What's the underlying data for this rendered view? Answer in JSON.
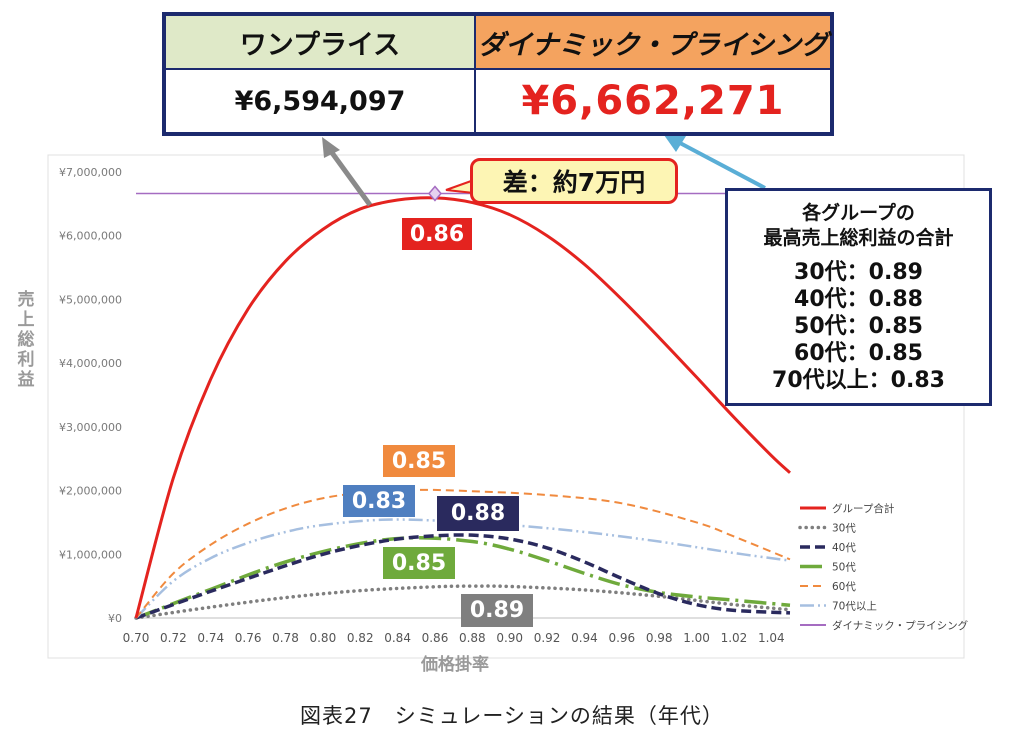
{
  "table": {
    "header_one_price": "ワンプライス",
    "header_dynamic": "ダイナミック・プライシング",
    "value_one_price": "¥6,594,097",
    "value_dynamic": "¥6,662,271"
  },
  "diff_callout": "差：約7万円",
  "summary_box": {
    "title_line1": "各グループの",
    "title_line2": "最高売上総利益の合計",
    "rows": [
      "30代：0.89",
      "40代：0.88",
      "50代：0.85",
      "60代：0.85",
      "70代以上：0.83"
    ]
  },
  "caption": "図表27　シミュレーションの結果（年代）",
  "colors": {
    "group_total": "#e4231f",
    "age30": "#7f7f7f",
    "age40": "#2a2a5e",
    "age50": "#6faa3c",
    "age60": "#f08a3e",
    "age70": "#a6bfe0",
    "dynamic": "#a56cc1",
    "navy": "#1c2a6e"
  },
  "chart_data": {
    "type": "line",
    "xlabel": "価格掛率",
    "ylabel": "売上総利益",
    "xlim": [
      0.7,
      1.05
    ],
    "ylim": [
      0,
      7000000
    ],
    "x_ticks": [
      "0.70",
      "0.72",
      "0.74",
      "0.76",
      "0.78",
      "0.80",
      "0.82",
      "0.84",
      "0.86",
      "0.88",
      "0.90",
      "0.92",
      "0.94",
      "0.96",
      "0.98",
      "1.00",
      "1.02",
      "1.04"
    ],
    "y_ticks": [
      "¥0",
      "¥1,000,000",
      "¥2,000,000",
      "¥3,000,000",
      "¥4,000,000",
      "¥5,000,000",
      "¥6,000,000",
      "¥7,000,000"
    ],
    "legend_position": "right",
    "series": [
      {
        "name": "グループ合計",
        "style": "solid",
        "x": [
          0.7,
          0.72,
          0.74,
          0.76,
          0.78,
          0.8,
          0.82,
          0.84,
          0.86,
          0.88,
          0.9,
          0.92,
          0.94,
          0.96,
          0.98,
          1.0,
          1.02,
          1.04,
          1.05
        ],
        "y": [
          0,
          2200000,
          3750000,
          4850000,
          5600000,
          6100000,
          6420000,
          6560000,
          6594000,
          6520000,
          6330000,
          6000000,
          5550000,
          5000000,
          4400000,
          3780000,
          3150000,
          2550000,
          2280000
        ]
      },
      {
        "name": "30代",
        "style": "dotted",
        "x": [
          0.7,
          0.74,
          0.78,
          0.82,
          0.86,
          0.88,
          0.9,
          0.94,
          0.98,
          1.02,
          1.05
        ],
        "y": [
          0,
          170000,
          320000,
          430000,
          490000,
          500000,
          495000,
          440000,
          340000,
          210000,
          130000
        ]
      },
      {
        "name": "40代",
        "style": "dashed",
        "x": [
          0.7,
          0.74,
          0.78,
          0.8,
          0.82,
          0.84,
          0.86,
          0.88,
          0.9,
          0.92,
          0.94,
          0.96,
          0.98,
          1.0,
          1.02,
          1.05
        ],
        "y": [
          0,
          420000,
          820000,
          1000000,
          1140000,
          1240000,
          1290000,
          1300000,
          1240000,
          1100000,
          880000,
          620000,
          380000,
          210000,
          120000,
          80000
        ]
      },
      {
        "name": "50代",
        "style": "dashdot",
        "x": [
          0.7,
          0.74,
          0.78,
          0.82,
          0.85,
          0.88,
          0.9,
          0.92,
          0.94,
          0.96,
          0.98,
          1.0,
          1.02,
          1.05
        ],
        "y": [
          0,
          450000,
          880000,
          1170000,
          1260000,
          1200000,
          1080000,
          900000,
          700000,
          520000,
          400000,
          330000,
          280000,
          200000
        ]
      },
      {
        "name": "60代",
        "style": "dashed",
        "x": [
          0.7,
          0.72,
          0.74,
          0.76,
          0.78,
          0.8,
          0.82,
          0.85,
          0.88,
          0.92,
          0.96,
          1.0,
          1.02,
          1.05
        ],
        "y": [
          0,
          700000,
          1150000,
          1480000,
          1720000,
          1880000,
          1960000,
          2010000,
          1990000,
          1930000,
          1800000,
          1500000,
          1280000,
          920000
        ]
      },
      {
        "name": "70代以上",
        "style": "dashdotdot",
        "x": [
          0.7,
          0.72,
          0.74,
          0.76,
          0.78,
          0.8,
          0.83,
          0.86,
          0.9,
          0.94,
          0.98,
          1.02,
          1.05
        ],
        "y": [
          0,
          580000,
          940000,
          1180000,
          1350000,
          1460000,
          1540000,
          1530000,
          1460000,
          1350000,
          1200000,
          1020000,
          900000
        ]
      },
      {
        "name": "ダイナミック・プライシング",
        "style": "solid",
        "x": [
          0.7,
          1.05
        ],
        "y": [
          6662271,
          6662271
        ]
      }
    ],
    "annotations": [
      {
        "text": "0.86",
        "series": "グループ合計"
      },
      {
        "text": "0.85",
        "series": "60代"
      },
      {
        "text": "0.83",
        "series": "70代以上"
      },
      {
        "text": "0.88",
        "series": "40代"
      },
      {
        "text": "0.85",
        "series": "50代"
      },
      {
        "text": "0.89",
        "series": "30代"
      }
    ]
  }
}
